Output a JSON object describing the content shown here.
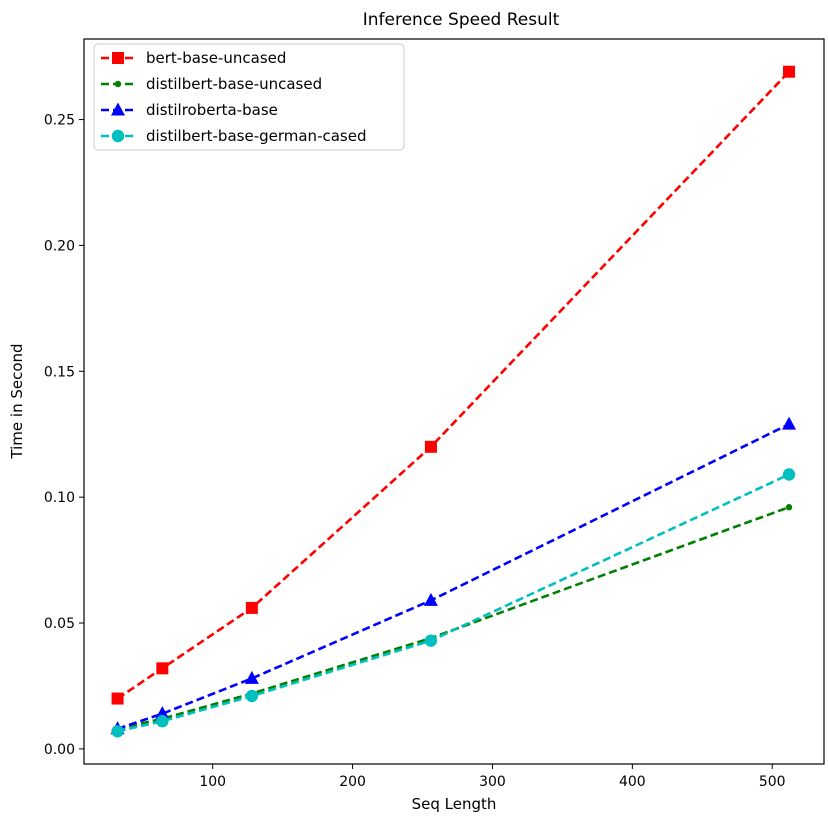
{
  "chart_data": {
    "type": "line",
    "title": "Inference Speed Result",
    "xlabel": "Seq Length",
    "ylabel": "Time in Second",
    "xlim": [
      8,
      537
    ],
    "ylim": [
      -0.006,
      0.282
    ],
    "xticks": [
      100,
      200,
      300,
      400,
      500
    ],
    "yticks": [
      0.0,
      0.05,
      0.1,
      0.15,
      0.2,
      0.25
    ],
    "ytick_labels": [
      "0.00",
      "0.05",
      "0.10",
      "0.15",
      "0.20",
      "0.25"
    ],
    "grid": false,
    "legend_position": "top-left",
    "x": [
      32,
      64,
      128,
      256,
      512
    ],
    "series": [
      {
        "name": "bert-base-uncased",
        "color": "#ff0000",
        "marker": "square",
        "values": [
          0.02,
          0.032,
          0.056,
          0.12,
          0.269
        ]
      },
      {
        "name": "distilbert-base-uncased",
        "color": "#008000",
        "marker": "dot",
        "values": [
          0.008,
          0.012,
          0.022,
          0.044,
          0.096
        ]
      },
      {
        "name": "distilroberta-base",
        "color": "#0000ff",
        "marker": "triangle",
        "values": [
          0.008,
          0.014,
          0.028,
          0.059,
          0.129
        ]
      },
      {
        "name": "distilbert-base-german-cased",
        "color": "#00bfbf",
        "marker": "circle",
        "values": [
          0.007,
          0.011,
          0.021,
          0.043,
          0.109
        ]
      }
    ]
  }
}
